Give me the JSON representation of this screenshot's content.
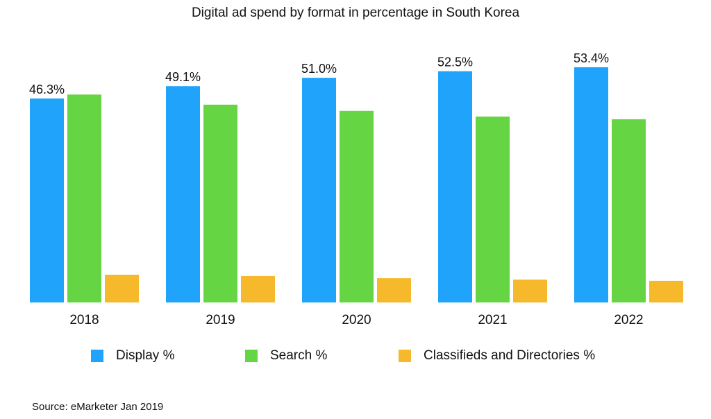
{
  "chart_data": {
    "type": "bar",
    "title": "Digital ad spend by format in percentage in South Korea",
    "categories": [
      "2018",
      "2019",
      "2020",
      "2021",
      "2022"
    ],
    "series": [
      {
        "name": "Display %",
        "color": "#1fa3fb",
        "values": [
          46.3,
          49.1,
          51.0,
          52.5,
          53.4
        ],
        "labels": [
          "46.3%",
          "49.1%",
          "51.0%",
          "52.5%",
          "53.4%"
        ]
      },
      {
        "name": "Search %",
        "color": "#66d544",
        "values": [
          47.2,
          44.9,
          43.5,
          42.2,
          41.6
        ]
      },
      {
        "name": "Classifieds and Directories %",
        "color": "#f6b92b",
        "values": [
          6.3,
          6.0,
          5.5,
          5.2,
          4.9
        ]
      }
    ],
    "ylim": [
      0,
      60
    ],
    "grid": false,
    "legend": "bottom"
  },
  "source": "Source: eMarketer Jan 2019"
}
